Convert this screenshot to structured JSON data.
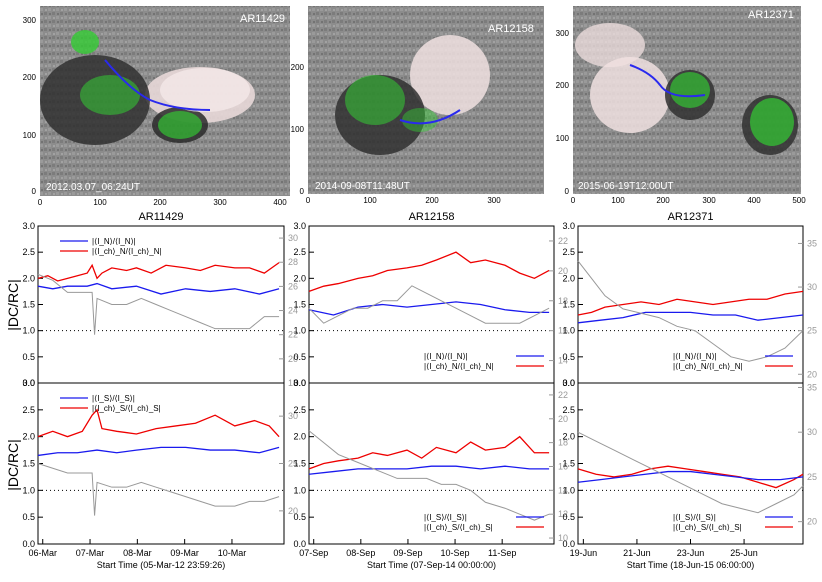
{
  "figure": {
    "left_ylabel": "|DC/RC|",
    "right_axis_color": "#999999",
    "red_color": "#ee0000",
    "blue_color": "#1a1aee",
    "gray_color": "#888888"
  },
  "magnetograms": [
    {
      "label": "AR11429",
      "timestamp": "2012.03.07_06:24UT",
      "x_ticks": [
        "0",
        "100",
        "200",
        "300",
        "400"
      ],
      "y_ticks": [
        "0",
        "100",
        "200",
        "300"
      ]
    },
    {
      "label": "AR12158",
      "timestamp": "2014-09-08T11:48UT",
      "x_ticks": [
        "0",
        "100",
        "200",
        "300"
      ],
      "y_ticks": [
        "0",
        "100",
        "200"
      ]
    },
    {
      "label": "AR12371",
      "timestamp": "2015-06-19T12:00UT",
      "x_ticks": [
        "0",
        "100",
        "200",
        "300",
        "400",
        "500"
      ],
      "y_ticks": [
        "0",
        "100",
        "200",
        "300"
      ]
    }
  ],
  "chart_data": [
    {
      "type": "line",
      "title": "AR11429",
      "ylabel": "|DC/RC|",
      "ylim": [
        0,
        3
      ],
      "y_ticks": [
        "0.0",
        "0.5",
        "1.0",
        "1.5",
        "2.0",
        "2.5",
        "3.0"
      ],
      "right_ylim": [
        18,
        31
      ],
      "right_ticks": [
        "18",
        "20",
        "22",
        "24",
        "26",
        "28",
        "30"
      ],
      "legend": [
        {
          "text": "|⟨I_N⟩/⟨I_N⟩|",
          "color": "#1a1aee"
        },
        {
          "text": "|⟨I_ch⟩_N/⟨I_ch⟩_N|",
          "color": "#ee0000"
        }
      ],
      "series": [
        {
          "color": "#ee0000",
          "x": [
            0,
            0.2,
            0.4,
            0.6,
            0.8,
            1,
            1.1,
            1.2,
            1.3,
            1.5,
            1.8,
            2,
            2.3,
            2.6,
            3,
            3.3,
            3.6,
            4,
            4.3,
            4.6,
            4.9
          ],
          "values": [
            2.0,
            2.05,
            1.95,
            2.0,
            2.05,
            2.1,
            2.25,
            2.0,
            2.1,
            2.2,
            2.15,
            2.2,
            2.1,
            2.25,
            2.2,
            2.15,
            2.25,
            2.2,
            2.2,
            2.1,
            2.3
          ]
        },
        {
          "color": "#1a1aee",
          "x": [
            0,
            0.3,
            0.6,
            1,
            1.2,
            1.5,
            2,
            2.5,
            3,
            3.5,
            4,
            4.5,
            4.9
          ],
          "values": [
            1.85,
            1.8,
            1.85,
            1.85,
            1.9,
            1.8,
            1.85,
            1.7,
            1.8,
            1.75,
            1.8,
            1.7,
            1.8
          ]
        },
        {
          "color": "#999999",
          "right": true,
          "x": [
            0,
            0.3,
            0.6,
            0.9,
            1.1,
            1.15,
            1.2,
            1.5,
            1.8,
            2.1,
            2.4,
            2.7,
            3,
            3.3,
            3.6,
            4,
            4.3,
            4.6,
            4.9
          ],
          "values": [
            27,
            26.5,
            25.5,
            25.5,
            25.5,
            22,
            25,
            24.5,
            24.5,
            25,
            24.5,
            24,
            23.5,
            23,
            22.5,
            22.5,
            22.5,
            23.5,
            23.5
          ]
        }
      ]
    },
    {
      "type": "line",
      "title": "AR12158",
      "ylim": [
        0,
        3
      ],
      "y_ticks": [
        "0.0",
        "0.5",
        "1.0",
        "1.5",
        "2.0",
        "2.5",
        "3.0"
      ],
      "right_ylim": [
        12.5,
        23
      ],
      "right_ticks": [
        "14",
        "16",
        "18",
        "20",
        "22"
      ],
      "legend": [
        {
          "text": "|⟨I_N⟩/⟨I_N⟩|",
          "color": "#1a1aee"
        },
        {
          "text": "|⟨I_ch⟩_N/⟨I_ch⟩_N|",
          "color": "#ee0000"
        }
      ],
      "series": [
        {
          "color": "#ee0000",
          "x": [
            0,
            0.3,
            0.6,
            1,
            1.3,
            1.6,
            2,
            2.3,
            2.6,
            3,
            3.3,
            3.6,
            4,
            4.3,
            4.6,
            4.9
          ],
          "values": [
            1.75,
            1.85,
            1.9,
            2.0,
            2.05,
            2.15,
            2.2,
            2.25,
            2.35,
            2.5,
            2.3,
            2.35,
            2.25,
            2.1,
            2.0,
            2.15
          ]
        },
        {
          "color": "#1a1aee",
          "x": [
            0,
            0.5,
            1,
            1.5,
            2,
            2.5,
            3,
            3.5,
            4,
            4.5,
            4.9
          ],
          "values": [
            1.4,
            1.3,
            1.45,
            1.5,
            1.45,
            1.5,
            1.55,
            1.5,
            1.4,
            1.35,
            1.35
          ]
        },
        {
          "color": "#999999",
          "right": true,
          "x": [
            0,
            0.3,
            0.6,
            0.9,
            1.2,
            1.5,
            1.8,
            2.1,
            2.4,
            2.7,
            3,
            3.3,
            3.6,
            4,
            4.3,
            4.6,
            4.9
          ],
          "values": [
            17.5,
            16.5,
            17,
            17.5,
            17.5,
            18,
            18,
            19,
            18.5,
            18,
            17.5,
            17,
            16.5,
            16.5,
            16.5,
            17,
            17.5
          ]
        }
      ]
    },
    {
      "type": "line",
      "title": "AR12371",
      "ylim": [
        0,
        3
      ],
      "y_ticks": [
        "0.0",
        "0.5",
        "1.0",
        "1.5",
        "2.0",
        "2.5",
        "3.0"
      ],
      "right_ylim": [
        19,
        37
      ],
      "right_ticks": [
        "20",
        "25",
        "30",
        "35"
      ],
      "legend": [
        {
          "text": "|⟨I_N⟩/⟨I_N⟩|",
          "color": "#1a1aee"
        },
        {
          "text": "|⟨I_ch⟩_N/⟨I_ch⟩_N|",
          "color": "#ee0000"
        }
      ],
      "series": [
        {
          "color": "#ee0000",
          "x": [
            0,
            0.3,
            0.6,
            1,
            1.4,
            1.8,
            2.2,
            2.6,
            3,
            3.4,
            3.8,
            4.2,
            4.6,
            5
          ],
          "values": [
            1.3,
            1.35,
            1.45,
            1.5,
            1.55,
            1.5,
            1.6,
            1.55,
            1.5,
            1.55,
            1.6,
            1.6,
            1.7,
            1.75
          ]
        },
        {
          "color": "#1a1aee",
          "x": [
            0,
            0.5,
            1,
            1.5,
            2,
            2.5,
            3,
            3.5,
            4,
            4.5,
            5
          ],
          "values": [
            1.15,
            1.2,
            1.25,
            1.35,
            1.35,
            1.35,
            1.3,
            1.3,
            1.2,
            1.25,
            1.3
          ]
        },
        {
          "color": "#999999",
          "right": true,
          "x": [
            0,
            0.3,
            0.6,
            1,
            1.4,
            1.8,
            2.2,
            2.6,
            3,
            3.4,
            3.8,
            4.2,
            4.6,
            5
          ],
          "values": [
            33,
            31,
            29,
            27.5,
            27,
            26.5,
            25.5,
            25,
            23.5,
            22,
            21.5,
            22,
            23,
            25
          ]
        }
      ]
    },
    {
      "type": "line",
      "ylim": [
        0,
        3
      ],
      "y_ticks": [
        "0.0",
        "0.5",
        "1.0",
        "1.5",
        "2.0",
        "2.5",
        "3.0"
      ],
      "right_ylim": [
        16.5,
        33.5
      ],
      "right_ticks": [
        "20",
        "25",
        "30"
      ],
      "legend": [
        {
          "text": "|⟨I_S⟩/⟨I_S⟩|",
          "color": "#1a1aee"
        },
        {
          "text": "|⟨I_ch⟩_S/⟨I_ch⟩_S|",
          "color": "#ee0000"
        }
      ],
      "x_ticks": [
        "06-Mar",
        "07-Mar",
        "08-Mar",
        "09-Mar",
        "10-Mar"
      ],
      "xlabel": "Start Time (05-Mar-12 23:59:26)",
      "series": [
        {
          "color": "#ee0000",
          "x": [
            0,
            0.3,
            0.6,
            0.9,
            1.1,
            1.2,
            1.3,
            1.6,
            2,
            2.4,
            2.8,
            3.2,
            3.6,
            4,
            4.4,
            4.7,
            4.9
          ],
          "values": [
            2.0,
            2.1,
            2.0,
            2.1,
            2.4,
            2.5,
            2.15,
            2.1,
            2.05,
            2.15,
            2.2,
            2.25,
            2.4,
            2.2,
            2.3,
            2.2,
            2.0
          ]
        },
        {
          "color": "#1a1aee",
          "x": [
            0,
            0.4,
            0.8,
            1.2,
            1.6,
            2,
            2.5,
            3,
            3.5,
            4,
            4.5,
            4.9
          ],
          "values": [
            1.65,
            1.7,
            1.7,
            1.75,
            1.7,
            1.75,
            1.8,
            1.8,
            1.75,
            1.75,
            1.7,
            1.8
          ]
        },
        {
          "color": "#999999",
          "right": true,
          "x": [
            0,
            0.3,
            0.6,
            0.9,
            1.1,
            1.15,
            1.2,
            1.5,
            1.8,
            2.1,
            2.4,
            2.7,
            3,
            3.3,
            3.6,
            4,
            4.3,
            4.6,
            4.9
          ],
          "values": [
            25,
            24.5,
            24,
            24,
            24,
            19.5,
            23,
            22.5,
            22.5,
            23,
            22.5,
            22,
            21.5,
            21,
            20.5,
            20.5,
            21,
            21,
            21.5
          ]
        }
      ]
    },
    {
      "type": "line",
      "ylim": [
        0,
        3
      ],
      "y_ticks": [
        "0.0",
        "0.5",
        "1.0",
        "1.5",
        "2.0",
        "2.5",
        "3.0"
      ],
      "right_ylim": [
        9.5,
        23
      ],
      "right_ticks": [
        "10",
        "12",
        "14",
        "16",
        "18",
        "20",
        "22"
      ],
      "legend": [
        {
          "text": "|⟨I_S⟩/⟨I_S⟩|",
          "color": "#1a1aee"
        },
        {
          "text": "|⟨I_ch⟩_S/⟨I_ch⟩_S|",
          "color": "#ee0000"
        }
      ],
      "x_ticks": [
        "07-Sep",
        "08-Sep",
        "09-Sep",
        "10-Sep",
        "11-Sep"
      ],
      "xlabel": "Start Time (07-Sep-14 00:00:00)",
      "series": [
        {
          "color": "#ee0000",
          "x": [
            0,
            0.3,
            0.6,
            1,
            1.3,
            1.6,
            2,
            2.3,
            2.6,
            3,
            3.3,
            3.6,
            4,
            4.3,
            4.6,
            4.9
          ],
          "values": [
            1.4,
            1.5,
            1.55,
            1.6,
            1.7,
            1.65,
            1.75,
            1.6,
            1.8,
            1.7,
            1.9,
            1.75,
            1.8,
            2.0,
            1.7,
            1.7
          ]
        },
        {
          "color": "#1a1aee",
          "x": [
            0,
            0.5,
            1,
            1.5,
            2,
            2.5,
            3,
            3.5,
            4,
            4.5,
            4.9
          ],
          "values": [
            1.3,
            1.35,
            1.4,
            1.4,
            1.4,
            1.45,
            1.45,
            1.4,
            1.45,
            1.4,
            1.4
          ]
        },
        {
          "color": "#999999",
          "right": true,
          "x": [
            0,
            0.3,
            0.6,
            0.9,
            1.2,
            1.5,
            1.8,
            2.1,
            2.4,
            2.7,
            3,
            3.3,
            3.6,
            4,
            4.3,
            4.6,
            4.9
          ],
          "values": [
            19,
            18,
            17,
            16.5,
            16,
            15.5,
            15,
            15,
            15,
            14.5,
            14.5,
            14,
            13,
            12.5,
            12,
            11.5,
            12
          ]
        }
      ]
    },
    {
      "type": "line",
      "ylim": [
        0,
        3
      ],
      "y_ticks": [
        "0.0",
        "0.5",
        "1.0",
        "1.5",
        "2.0",
        "2.5",
        "3.0"
      ],
      "right_ylim": [
        17.5,
        35.5
      ],
      "right_ticks": [
        "20",
        "25",
        "30",
        "35"
      ],
      "legend": [
        {
          "text": "|⟨I_S⟩/⟨I_S⟩|",
          "color": "#1a1aee"
        },
        {
          "text": "|⟨I_ch⟩_S/⟨I_ch⟩_S|",
          "color": "#ee0000"
        }
      ],
      "x_ticks": [
        "19-Jun",
        "21-Jun",
        "23-Jun",
        "25-Jun"
      ],
      "xlabel": "Start Time (18-Jun-15 06:00:00)",
      "series": [
        {
          "color": "#ee0000",
          "x": [
            0,
            0.4,
            0.8,
            1.2,
            1.6,
            2,
            2.4,
            2.8,
            3.2,
            3.6,
            4,
            4.4,
            4.8,
            5
          ],
          "values": [
            1.4,
            1.3,
            1.25,
            1.3,
            1.4,
            1.45,
            1.4,
            1.35,
            1.3,
            1.25,
            1.15,
            1.05,
            1.2,
            1.3
          ]
        },
        {
          "color": "#1a1aee",
          "x": [
            0,
            0.5,
            1,
            1.5,
            2,
            2.5,
            3,
            3.5,
            4,
            4.5,
            5
          ],
          "values": [
            1.15,
            1.2,
            1.25,
            1.3,
            1.35,
            1.35,
            1.3,
            1.25,
            1.2,
            1.2,
            1.25
          ]
        },
        {
          "color": "#999999",
          "right": true,
          "x": [
            0,
            0.4,
            0.8,
            1.2,
            1.6,
            2,
            2.4,
            2.8,
            3.2,
            3.6,
            4,
            4.4,
            4.8,
            5
          ],
          "values": [
            30,
            29,
            28,
            27,
            26,
            25,
            24,
            23,
            22,
            21.5,
            21,
            22,
            23,
            24
          ]
        }
      ]
    }
  ]
}
